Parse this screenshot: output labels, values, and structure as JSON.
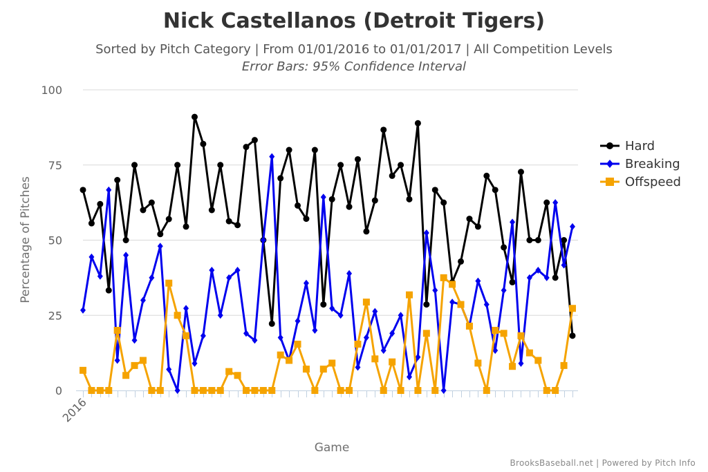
{
  "chart_data": {
    "type": "line",
    "title": "Nick Castellanos (Detroit Tigers)",
    "subtitle": "Sorted by Pitch Category | From 01/01/2016 to 01/01/2017 | All Competition Levels",
    "subtitle2": "Error Bars: 95% Confidence Interval",
    "xlabel": "Game",
    "ylabel": "Percentage of Pitches",
    "ylim": [
      0,
      100
    ],
    "yticks": [
      "0",
      "25",
      "50",
      "75",
      "100"
    ],
    "xtick_label": "2016",
    "legend_position": "right",
    "grid": true,
    "series": [
      {
        "name": "Hard",
        "color": "#000000",
        "marker": "circle",
        "values": [
          66.7,
          55.6,
          62,
          33.3,
          70,
          50,
          75,
          60,
          62.5,
          52,
          57,
          75,
          54.5,
          91,
          82,
          60,
          75,
          56.3,
          55,
          81,
          83.3,
          50,
          22.2,
          70.6,
          80,
          61.5,
          57.1,
          80,
          28.6,
          63.6,
          75,
          61.1,
          76.9,
          52.9,
          63.2,
          86.7,
          71.4,
          75,
          63.6,
          88.9,
          28.6,
          66.7,
          62.5,
          36,
          42.9,
          57.1,
          54.5,
          71.4,
          66.7,
          47.6,
          36,
          72.7,
          50,
          50,
          62.5,
          37.5,
          50,
          18.2
        ]
      },
      {
        "name": "Breaking",
        "color": "#0000ee",
        "marker": "diamond",
        "values": [
          26.7,
          44.4,
          38,
          66.7,
          10,
          45,
          16.7,
          30,
          37.5,
          48,
          7,
          0,
          27.3,
          9,
          18.2,
          40,
          25,
          37.5,
          40,
          19,
          16.7,
          50,
          77.8,
          17.6,
          10,
          23.1,
          35.7,
          20,
          64.3,
          27.3,
          25,
          38.9,
          7.7,
          17.6,
          26.3,
          13.3,
          19,
          25,
          4.5,
          11.1,
          52.4,
          33.3,
          0,
          29.4,
          28.6,
          21.4,
          36.4,
          28.6,
          13.3,
          33.3,
          56,
          9,
          37.5,
          40,
          37.5,
          62.5,
          41.7,
          54.5
        ]
      },
      {
        "name": "Offspeed",
        "color": "#f5a300",
        "marker": "square",
        "values": [
          6.7,
          0,
          0,
          0,
          20,
          5,
          8.3,
          10,
          0,
          0,
          35.7,
          25,
          18.2,
          0,
          0,
          0,
          0,
          6.3,
          5,
          0,
          0,
          0,
          0,
          11.8,
          10,
          15.4,
          7.1,
          0,
          7.1,
          9.1,
          0,
          0,
          15.4,
          29.4,
          10.5,
          0,
          9.5,
          0,
          31.8,
          0,
          19,
          0,
          37.5,
          35.3,
          28.6,
          21.4,
          9.1,
          0,
          20,
          19,
          8,
          18.2,
          12.5,
          10,
          0,
          0,
          8.3,
          27.3
        ]
      }
    ]
  },
  "credit": "BrooksBaseball.net | Powered by Pitch Info"
}
